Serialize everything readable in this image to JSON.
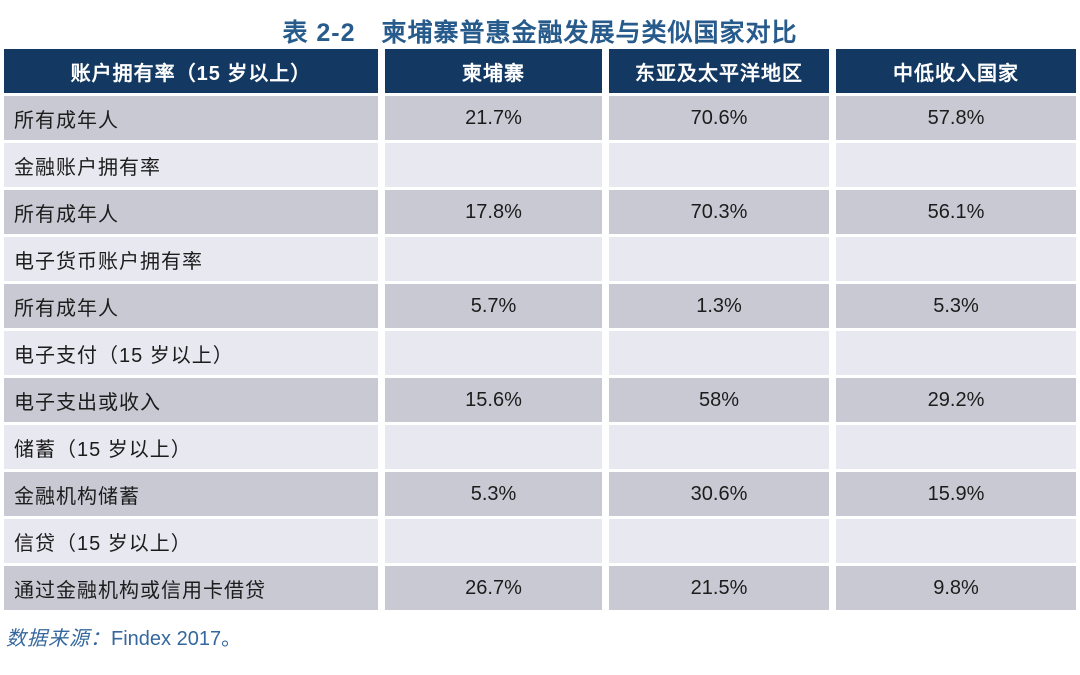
{
  "page": {
    "title": "表 2-2　柬埔寨普惠金融发展与类似国家对比"
  },
  "table": {
    "headers": [
      "账户拥有率（15 岁以上）",
      "柬埔寨",
      "东亚及太平洋地区",
      "中低收入国家"
    ],
    "rows": [
      {
        "type": "data",
        "label": "所有成年人",
        "values": [
          "21.7%",
          "70.6%",
          "57.8%"
        ]
      },
      {
        "type": "section",
        "label": "金融账户拥有率",
        "values": [
          "",
          "",
          ""
        ]
      },
      {
        "type": "data",
        "label": "所有成年人",
        "values": [
          "17.8%",
          "70.3%",
          "56.1%"
        ]
      },
      {
        "type": "section",
        "label": "电子货币账户拥有率",
        "values": [
          "",
          "",
          ""
        ]
      },
      {
        "type": "data",
        "label": "所有成年人",
        "values": [
          "5.7%",
          "1.3%",
          "5.3%"
        ]
      },
      {
        "type": "section",
        "label": "电子支付（15 岁以上）",
        "values": [
          "",
          "",
          ""
        ]
      },
      {
        "type": "data",
        "label": "电子支出或收入",
        "values": [
          "15.6%",
          "58%",
          "29.2%"
        ]
      },
      {
        "type": "section",
        "label": "储蓄（15 岁以上）",
        "values": [
          "",
          "",
          ""
        ]
      },
      {
        "type": "data",
        "label": "金融机构储蓄",
        "values": [
          "5.3%",
          "30.6%",
          "15.9%"
        ]
      },
      {
        "type": "section",
        "label": "信贷（15 岁以上）",
        "values": [
          "",
          "",
          ""
        ]
      },
      {
        "type": "data",
        "label": "通过金融机构或信用卡借贷",
        "values": [
          "26.7%",
          "21.5%",
          "9.8%"
        ]
      }
    ]
  },
  "footer": {
    "source_prefix": "数据来源：",
    "source_value": "Findex 2017。"
  },
  "colors": {
    "header_bg": "#133962",
    "header_text": "#FFFFFF",
    "row_data_bg": "#C9C9D4",
    "row_section_bg": "#E8E8F0",
    "cell_text": "#1C1C1C",
    "title_text": "#275B8C",
    "footer_text": "#35689E",
    "page_bg": "#FFFFFF"
  }
}
